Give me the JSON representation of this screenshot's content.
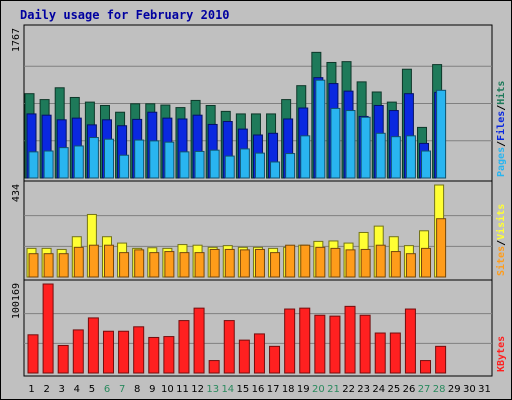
{
  "chart_data": {
    "type": "bar",
    "title": "Daily usage for February 2010",
    "x": [
      "1",
      "2",
      "3",
      "4",
      "5",
      "6",
      "7",
      "8",
      "9",
      "10",
      "11",
      "12",
      "13",
      "14",
      "15",
      "16",
      "17",
      "18",
      "19",
      "20",
      "21",
      "22",
      "23",
      "24",
      "25",
      "26",
      "27",
      "28",
      "29",
      "30",
      "31"
    ],
    "weekend_days": [
      "6",
      "7",
      "13",
      "14",
      "20",
      "21",
      "27",
      "28"
    ],
    "panels": [
      {
        "name": "hits-files-pages",
        "ymax": 1767,
        "ymax_label": "1767",
        "right_label": [
          "Pages",
          "/",
          "Files",
          "/",
          "Hits"
        ],
        "series": [
          {
            "name": "Hits",
            "color": "#1e7a5a",
            "values": [
              1000,
              930,
              1070,
              955,
              900,
              860,
              780,
              880,
              880,
              865,
              835,
              920,
              860,
              790,
              760,
              760,
              760,
              930,
              1095,
              1490,
              1370,
              1380,
              1140,
              1020,
              900,
              1290,
              600,
              1345
            ]
          },
          {
            "name": "Files",
            "color": "#0a28e0",
            "values": [
              760,
              745,
              690,
              710,
              630,
              690,
              620,
              695,
              780,
              710,
              700,
              745,
              635,
              670,
              580,
              510,
              530,
              700,
              830,
              1190,
              1120,
              1030,
              730,
              860,
              800,
              1000,
              410,
              1015
            ]
          },
          {
            "name": "Pages",
            "color": "#29b5f0",
            "values": [
              310,
              320,
              360,
              380,
              480,
              460,
              270,
              450,
              440,
              425,
              310,
              315,
              330,
              260,
              345,
              295,
              190,
              290,
              500,
              1160,
              825,
              800,
              720,
              530,
              490,
              500,
              320,
              1040
            ]
          }
        ]
      },
      {
        "name": "sites-visits",
        "ymax": 434,
        "ymax_label": "434",
        "right_label": [
          "Sites",
          "/",
          "Visits"
        ],
        "series": [
          {
            "name": "Visits",
            "color": "#ffff33",
            "values": [
              135,
              135,
              130,
              190,
              295,
              190,
              160,
              135,
              138,
              135,
              153,
              150,
              140,
              148,
              140,
              140,
              135,
              140,
              150,
              168,
              170,
              160,
              210,
              240,
              190,
              148,
              218,
              434
            ]
          },
          {
            "name": "Sites",
            "color": "#ff9c1a",
            "values": [
              110,
              110,
              110,
              140,
              150,
              150,
              115,
              128,
              115,
              120,
              115,
              115,
              130,
              130,
              128,
              130,
              115,
              150,
              150,
              140,
              135,
              128,
              130,
              150,
              120,
              110,
              135,
              275
            ]
          }
        ]
      },
      {
        "name": "kbytes",
        "ymax": 100169,
        "ymax_label": "100169",
        "right_label": [
          "KBytes"
        ],
        "series": [
          {
            "name": "KBytes",
            "color": "#ff2020",
            "values": [
              43000,
              100169,
              31000,
              48500,
              62000,
              47000,
              47000,
              52000,
              40000,
              41000,
              59000,
              73000,
              14000,
              59000,
              37000,
              44000,
              30000,
              72000,
              73000,
              65000,
              64000,
              75000,
              65000,
              45000,
              45000,
              72000,
              14000,
              30000
            ]
          }
        ]
      }
    ]
  }
}
